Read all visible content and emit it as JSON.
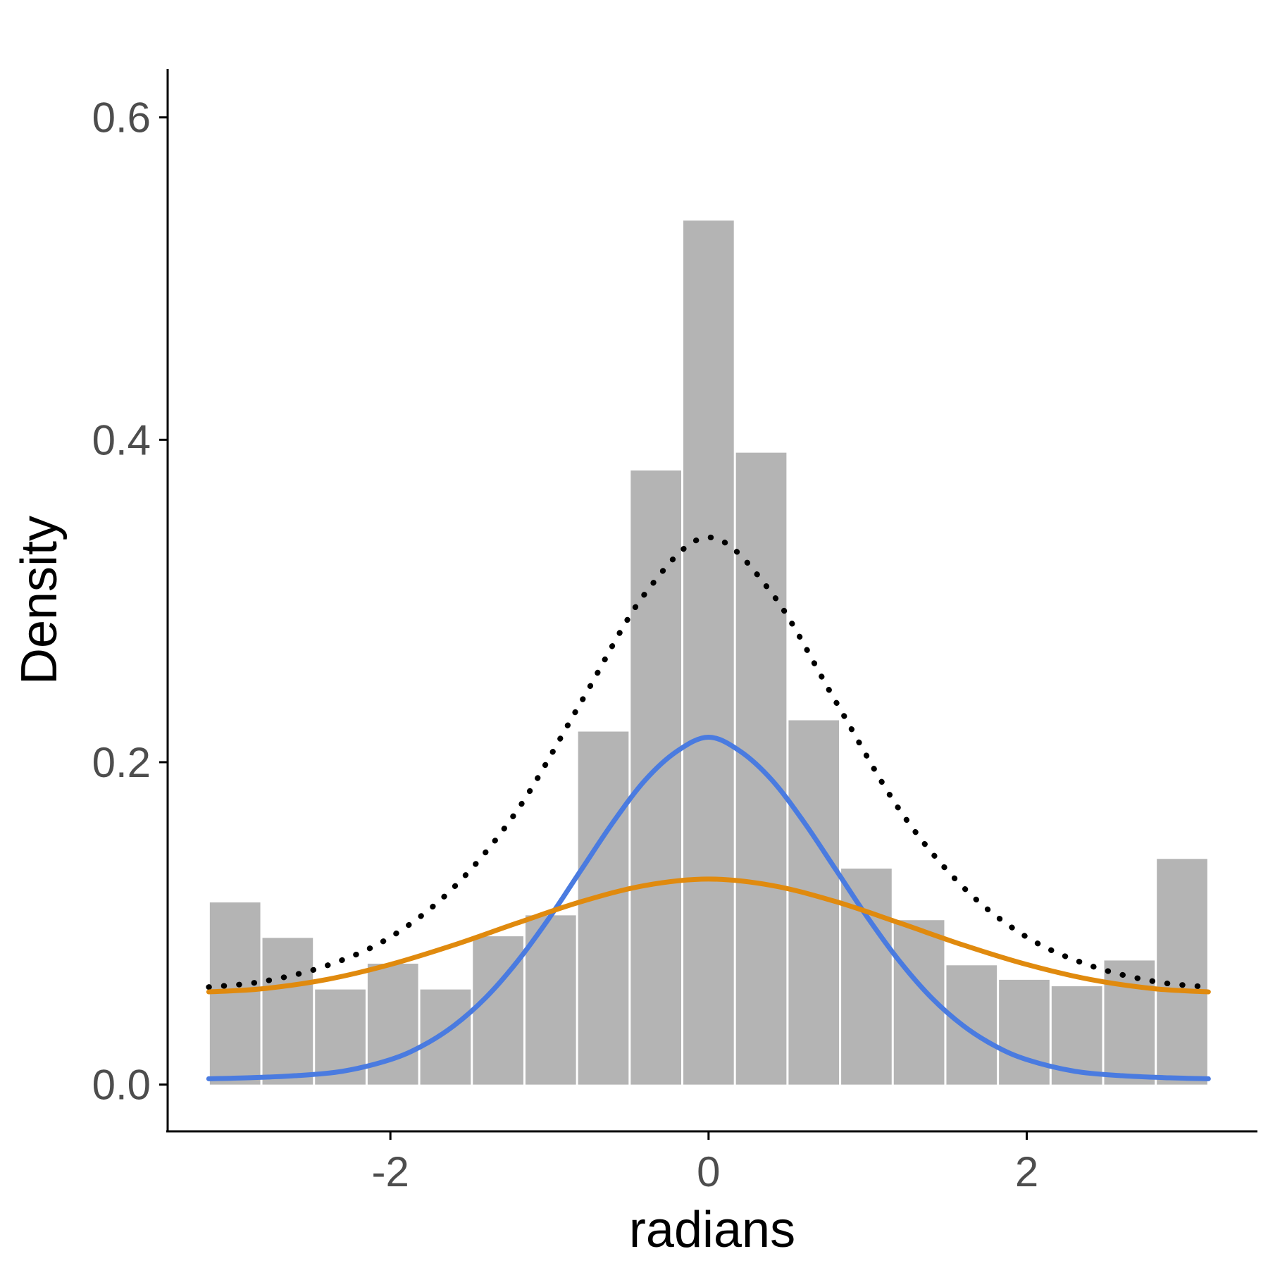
{
  "chart_data": {
    "type": "bar",
    "title": "",
    "xlabel": "radians",
    "ylabel": "Density",
    "xlim": [
      -3.4,
      3.45
    ],
    "ylim": [
      -0.029,
      0.63
    ],
    "x_ticks": [
      -2,
      0,
      2
    ],
    "x_tick_labels": [
      "-2",
      "0",
      "2"
    ],
    "y_ticks": [
      0.0,
      0.2,
      0.4,
      0.6
    ],
    "y_tick_labels": [
      "0.0",
      "0.2",
      "0.4",
      "0.6"
    ],
    "grid": false,
    "colors": {
      "bar": "#b4b4b4",
      "bar_border": "#ffffff",
      "series_blue": "#4a7be0",
      "series_orange": "#e08a0e",
      "series_dotted": "#000000"
    },
    "histogram": {
      "bin_start": -3.1416,
      "bin_width": 0.3307,
      "densities": [
        0.113,
        0.091,
        0.059,
        0.075,
        0.059,
        0.092,
        0.105,
        0.219,
        0.381,
        0.536,
        0.392,
        0.226,
        0.134,
        0.102,
        0.074,
        0.065,
        0.061,
        0.077,
        0.14
      ]
    },
    "series": [
      {
        "name": "blue curve",
        "x": [
          -3.1416,
          -2.9,
          -2.6,
          -2.3,
          -2.0,
          -1.8,
          -1.6,
          -1.4,
          -1.2,
          -1.0,
          -0.8,
          -0.6,
          -0.4,
          -0.2,
          0.0,
          0.2,
          0.4,
          0.6,
          0.8,
          1.0,
          1.2,
          1.4,
          1.6,
          1.8,
          2.0,
          2.3,
          2.6,
          2.9,
          3.1416
        ],
        "y": [
          0.0036,
          0.0042,
          0.0055,
          0.0083,
          0.0155,
          0.024,
          0.0366,
          0.054,
          0.0766,
          0.1036,
          0.1333,
          0.1628,
          0.1887,
          0.2067,
          0.2155,
          0.2067,
          0.1887,
          0.1628,
          0.1333,
          0.1036,
          0.0766,
          0.054,
          0.0366,
          0.024,
          0.0155,
          0.0083,
          0.0055,
          0.0042,
          0.0036
        ]
      },
      {
        "name": "orange curve",
        "x": [
          -3.1416,
          -2.8,
          -2.4,
          -2.0,
          -1.6,
          -1.2,
          -0.8,
          -0.4,
          0.0,
          0.4,
          0.8,
          1.2,
          1.6,
          2.0,
          2.4,
          2.8,
          3.1416
        ],
        "y": [
          0.0575,
          0.0595,
          0.0652,
          0.0745,
          0.0866,
          0.1003,
          0.1135,
          0.1235,
          0.1275,
          0.1235,
          0.1135,
          0.1003,
          0.0866,
          0.0745,
          0.0652,
          0.0595,
          0.0575
        ]
      },
      {
        "name": "dotted curve",
        "x": [
          -3.1416,
          -2.8,
          -2.4,
          -2.0,
          -1.6,
          -1.2,
          -0.8,
          -0.4,
          0.0,
          0.4,
          0.8,
          1.2,
          1.6,
          2.0,
          2.4,
          2.8,
          3.1416
        ],
        "y": [
          0.0605,
          0.064,
          0.0738,
          0.0915,
          0.1225,
          0.1705,
          0.2375,
          0.3045,
          0.3395,
          0.3045,
          0.2375,
          0.1705,
          0.1225,
          0.0915,
          0.0738,
          0.064,
          0.0605
        ]
      }
    ]
  }
}
